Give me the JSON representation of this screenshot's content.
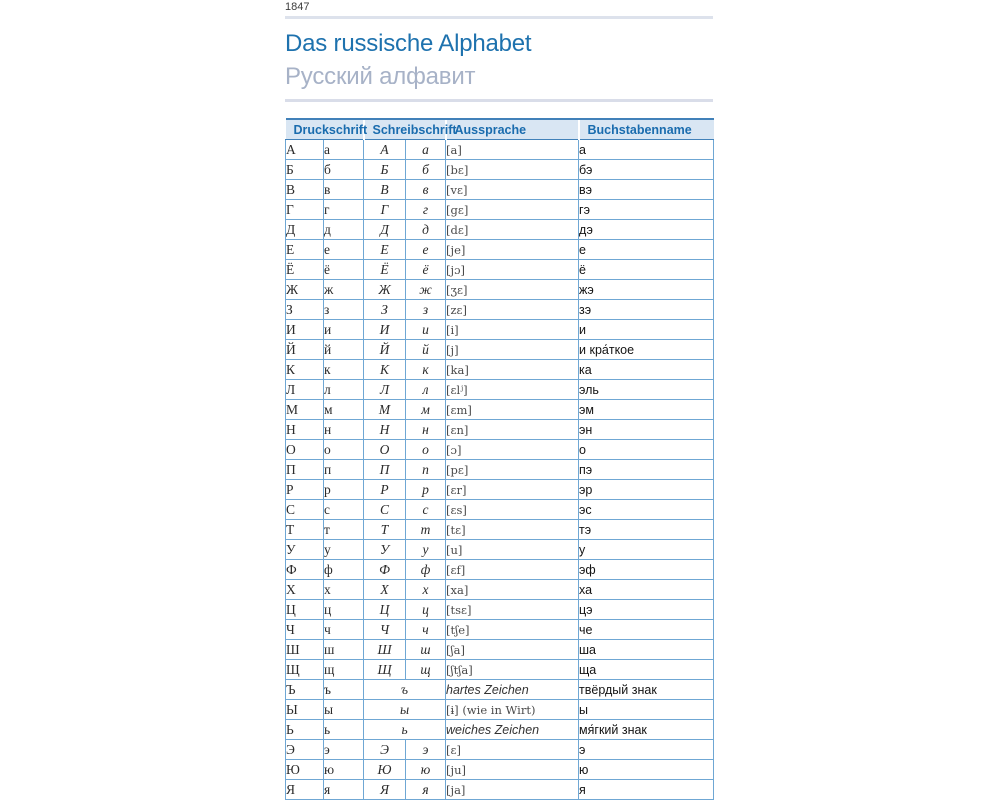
{
  "page": {
    "number": "1847"
  },
  "header": {
    "title": "Das russische Alphabet",
    "subtitle": "Русский алфавит"
  },
  "colors": {
    "title_blue": "#1e72ae",
    "subtitle_gray": "#a7b2c7",
    "header_bg": "#d9e6f3",
    "header_text": "#1a6cae",
    "table_border": "#6fa7d4",
    "divider_gray": "#dde2ec"
  },
  "table": {
    "columns": [
      "Druckschrift",
      "Schreibschrift",
      "Aussprache",
      "Buchstabenname"
    ],
    "rows": [
      {
        "print_upper": "А",
        "print_lower": "а",
        "script_upper": "А",
        "script_lower": "а",
        "script_merged": false,
        "pronunciation": "[a]",
        "pron_style": "ipa",
        "name": "а"
      },
      {
        "print_upper": "Б",
        "print_lower": "б",
        "script_upper": "Б",
        "script_lower": "б",
        "script_merged": false,
        "pronunciation": "[bɛ]",
        "pron_style": "ipa",
        "name": "бэ"
      },
      {
        "print_upper": "В",
        "print_lower": "в",
        "script_upper": "В",
        "script_lower": "в",
        "script_merged": false,
        "pronunciation": "[vɛ]",
        "pron_style": "ipa",
        "name": "вэ"
      },
      {
        "print_upper": "Г",
        "print_lower": "г",
        "script_upper": "Г",
        "script_lower": "г",
        "script_merged": false,
        "pronunciation": "[gɛ]",
        "pron_style": "ipa",
        "name": "гэ"
      },
      {
        "print_upper": "Д",
        "print_lower": "д",
        "script_upper": "Д",
        "script_lower": "д",
        "script_merged": false,
        "pronunciation": "[dɛ]",
        "pron_style": "ipa",
        "name": "дэ"
      },
      {
        "print_upper": "Е",
        "print_lower": "е",
        "script_upper": "Е",
        "script_lower": "е",
        "script_merged": false,
        "pronunciation": "[je]",
        "pron_style": "ipa",
        "name": "е"
      },
      {
        "print_upper": "Ё",
        "print_lower": "ё",
        "script_upper": "Ё",
        "script_lower": "ё",
        "script_merged": false,
        "pronunciation": "[jɔ]",
        "pron_style": "ipa",
        "name": "ё"
      },
      {
        "print_upper": "Ж",
        "print_lower": "ж",
        "script_upper": "Ж",
        "script_lower": "ж",
        "script_merged": false,
        "pronunciation": "[ʒɛ]",
        "pron_style": "ipa",
        "name": "жэ"
      },
      {
        "print_upper": "З",
        "print_lower": "з",
        "script_upper": "З",
        "script_lower": "з",
        "script_merged": false,
        "pronunciation": "[zɛ]",
        "pron_style": "ipa",
        "name": "зэ"
      },
      {
        "print_upper": "И",
        "print_lower": "и",
        "script_upper": "И",
        "script_lower": "и",
        "script_merged": false,
        "pronunciation": "[i]",
        "pron_style": "ipa",
        "name": "и"
      },
      {
        "print_upper": "Й",
        "print_lower": "й",
        "script_upper": "Й",
        "script_lower": "й",
        "script_merged": false,
        "pronunciation": "[j]",
        "pron_style": "ipa",
        "name": "и кра́ткое"
      },
      {
        "print_upper": "К",
        "print_lower": "к",
        "script_upper": "К",
        "script_lower": "к",
        "script_merged": false,
        "pronunciation": "[ka]",
        "pron_style": "ipa",
        "name": "ка"
      },
      {
        "print_upper": "Л",
        "print_lower": "л",
        "script_upper": "Л",
        "script_lower": "л",
        "script_merged": false,
        "pronunciation": "[ɛlʲ]",
        "pron_style": "ipa",
        "name": "эль"
      },
      {
        "print_upper": "М",
        "print_lower": "м",
        "script_upper": "М",
        "script_lower": "м",
        "script_merged": false,
        "pronunciation": "[ɛm]",
        "pron_style": "ipa",
        "name": "эм"
      },
      {
        "print_upper": "Н",
        "print_lower": "н",
        "script_upper": "Н",
        "script_lower": "н",
        "script_merged": false,
        "pronunciation": "[ɛn]",
        "pron_style": "ipa",
        "name": "эн"
      },
      {
        "print_upper": "О",
        "print_lower": "о",
        "script_upper": "О",
        "script_lower": "о",
        "script_merged": false,
        "pronunciation": "[ɔ]",
        "pron_style": "ipa",
        "name": "о"
      },
      {
        "print_upper": "П",
        "print_lower": "п",
        "script_upper": "П",
        "script_lower": "п",
        "script_merged": false,
        "pronunciation": "[pɛ]",
        "pron_style": "ipa",
        "name": "пэ"
      },
      {
        "print_upper": "Р",
        "print_lower": "р",
        "script_upper": "Р",
        "script_lower": "р",
        "script_merged": false,
        "pronunciation": "[ɛr]",
        "pron_style": "ipa",
        "name": "эр"
      },
      {
        "print_upper": "С",
        "print_lower": "с",
        "script_upper": "С",
        "script_lower": "с",
        "script_merged": false,
        "pronunciation": "[ɛs]",
        "pron_style": "ipa",
        "name": "эс"
      },
      {
        "print_upper": "Т",
        "print_lower": "т",
        "script_upper": "Т",
        "script_lower": "т",
        "script_merged": false,
        "pronunciation": "[tɛ]",
        "pron_style": "ipa",
        "name": "тэ"
      },
      {
        "print_upper": "У",
        "print_lower": "у",
        "script_upper": "У",
        "script_lower": "у",
        "script_merged": false,
        "pronunciation": "[u]",
        "pron_style": "ipa",
        "name": "у"
      },
      {
        "print_upper": "Ф",
        "print_lower": "ф",
        "script_upper": "Ф",
        "script_lower": "ф",
        "script_merged": false,
        "pronunciation": "[ɛf]",
        "pron_style": "ipa",
        "name": "эф"
      },
      {
        "print_upper": "Х",
        "print_lower": "х",
        "script_upper": "Х",
        "script_lower": "х",
        "script_merged": false,
        "pronunciation": "[xa]",
        "pron_style": "ipa",
        "name": "ха"
      },
      {
        "print_upper": "Ц",
        "print_lower": "ц",
        "script_upper": "Ц",
        "script_lower": "ц",
        "script_merged": false,
        "pronunciation": "[tsɛ]",
        "pron_style": "ipa",
        "name": "цэ"
      },
      {
        "print_upper": "Ч",
        "print_lower": "ч",
        "script_upper": "Ч",
        "script_lower": "ч",
        "script_merged": false,
        "pronunciation": "[tʃe]",
        "pron_style": "ipa",
        "name": "че"
      },
      {
        "print_upper": "Ш",
        "print_lower": "ш",
        "script_upper": "Ш",
        "script_lower": "ш",
        "script_merged": false,
        "pronunciation": "[ʃa]",
        "pron_style": "ipa",
        "name": "ша"
      },
      {
        "print_upper": "Щ",
        "print_lower": "щ",
        "script_upper": "Щ",
        "script_lower": "щ",
        "script_merged": false,
        "pronunciation": "[ʃtʃa]",
        "pron_style": "ipa",
        "name": "ща"
      },
      {
        "print_upper": "Ъ",
        "print_lower": "ъ",
        "script_upper": "",
        "script_lower": "ъ",
        "script_merged": true,
        "pronunciation": "hartes Zeichen",
        "pron_style": "note",
        "name": "твёрдый знак"
      },
      {
        "print_upper": "Ы",
        "print_lower": "ы",
        "script_upper": "",
        "script_lower": "ы",
        "script_merged": true,
        "pronunciation": "[ɨ] (wie in Wirt)",
        "pron_style": "ipa",
        "name": "ы"
      },
      {
        "print_upper": "Ь",
        "print_lower": "ь",
        "script_upper": "",
        "script_lower": "ь",
        "script_merged": true,
        "pronunciation": "weiches Zeichen",
        "pron_style": "note",
        "name": "мя́гкий знак"
      },
      {
        "print_upper": "Э",
        "print_lower": "э",
        "script_upper": "Э",
        "script_lower": "э",
        "script_merged": false,
        "pronunciation": "[ɛ]",
        "pron_style": "ipa",
        "name": "э"
      },
      {
        "print_upper": "Ю",
        "print_lower": "ю",
        "script_upper": "Ю",
        "script_lower": "ю",
        "script_merged": false,
        "pronunciation": "[ju]",
        "pron_style": "ipa",
        "name": "ю"
      },
      {
        "print_upper": "Я",
        "print_lower": "я",
        "script_upper": "Я",
        "script_lower": "я",
        "script_merged": false,
        "pronunciation": "[ja]",
        "pron_style": "ipa",
        "name": "я"
      }
    ]
  }
}
